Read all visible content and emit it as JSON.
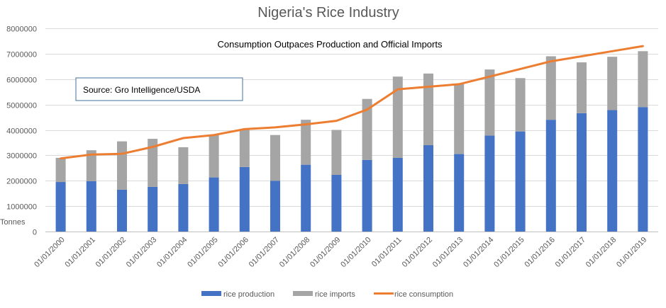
{
  "chart_data": {
    "type": "bar",
    "stacked": true,
    "title": "Nigeria's Rice Industry",
    "subtitle": "Consumption Outpaces Production and Official Imports",
    "annotation": "Source: Gro Intelligence/USDA",
    "ylabel": "Tonnes",
    "xlabel": "",
    "ylim": [
      0,
      8000000
    ],
    "yticks": [
      0,
      1000000,
      2000000,
      3000000,
      4000000,
      5000000,
      6000000,
      7000000,
      8000000
    ],
    "ytick_labels": [
      "0",
      "1000000",
      "2000000",
      "3000000",
      "4000000",
      "5000000",
      "6000000",
      "7000000",
      "8000000"
    ],
    "grid": true,
    "legend_position": "bottom",
    "categories": [
      "01/01/2000",
      "01/01/2001",
      "01/01/2002",
      "01/01/2003",
      "01/01/2004",
      "01/01/2005",
      "01/01/2006",
      "01/01/2007",
      "01/01/2008",
      "01/01/2009",
      "01/01/2010",
      "01/01/2011",
      "01/01/2012",
      "01/01/2013",
      "01/01/2014",
      "01/01/2015",
      "01/01/2016",
      "01/01/2017",
      "01/01/2018",
      "01/01/2019"
    ],
    "series": [
      {
        "name": "rice production",
        "type": "bar",
        "color": "#4472C4",
        "values": [
          1950000,
          1980000,
          1650000,
          1760000,
          1870000,
          2130000,
          2540000,
          2000000,
          2630000,
          2230000,
          2820000,
          2900000,
          3400000,
          3050000,
          3780000,
          3940000,
          4400000,
          4660000,
          4780000,
          4900000
        ]
      },
      {
        "name": "rice imports",
        "type": "bar",
        "color": "#A5A5A5",
        "values": [
          950000,
          1220000,
          1900000,
          1890000,
          1450000,
          1670000,
          1460000,
          1800000,
          1770000,
          1770000,
          2400000,
          3200000,
          2820000,
          2750000,
          2600000,
          2100000,
          2500000,
          2000000,
          2100000,
          2200000
        ]
      },
      {
        "name": "rice consumption",
        "type": "line",
        "color": "#ED7D31",
        "values": [
          2880000,
          3030000,
          3060000,
          3330000,
          3680000,
          3800000,
          4030000,
          4100000,
          4220000,
          4360000,
          4800000,
          5600000,
          5700000,
          5800000,
          6100000,
          6400000,
          6700000,
          6900000,
          7100000,
          7300000
        ]
      }
    ]
  }
}
